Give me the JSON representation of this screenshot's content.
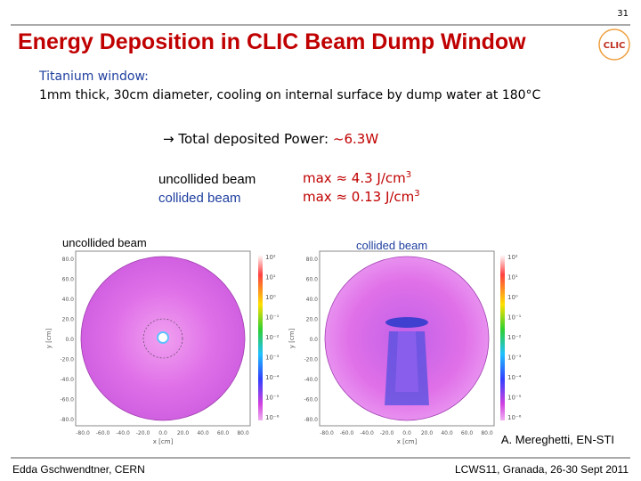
{
  "header": {
    "page_number": "31",
    "title": "Energy Deposition in CLIC Beam Dump Window",
    "logo": "CLIC"
  },
  "body": {
    "intro": [
      "Titanium window:",
      "1mm thick, 30cm diameter, cooling on internal surface by dump water at 180°C"
    ],
    "power": {
      "label": "→ Total deposited Power: ",
      "value": "~6.3W"
    },
    "beams": [
      {
        "name": "uncollided beam",
        "max": "max ≈ 4.3 J/cm",
        "exponent": "3"
      },
      {
        "name": "collided beam",
        "max": "max ≈ 0.13 J/cm",
        "exponent": "3"
      }
    ]
  },
  "plots": {
    "labels": [
      "uncollided beam",
      "collided beam"
    ],
    "x_label": "x [cm]",
    "y_label": "y [cm]",
    "yticks": [
      "80.0",
      "60.0",
      "40.0",
      "20.0",
      "0.0",
      "-20.0",
      "-40.0",
      "-60.0",
      "-80.0"
    ],
    "xticks": [
      "-80.0",
      "-60.0",
      "-40.0",
      "-20.0",
      "0.0",
      "20.0",
      "40.0",
      "60.0",
      "80.0"
    ],
    "colorbar": [
      "10²",
      "10¹",
      "10⁰",
      "10⁻¹",
      "10⁻²",
      "10⁻³",
      "10⁻⁴",
      "10⁻⁵",
      "10⁻⁶"
    ]
  },
  "credit": "A. Mereghetti, EN-STI",
  "footer": {
    "left": "Edda Gschwendtner, CERN",
    "right": "LCWS11, Granada, 26-30 Sept 2011"
  }
}
